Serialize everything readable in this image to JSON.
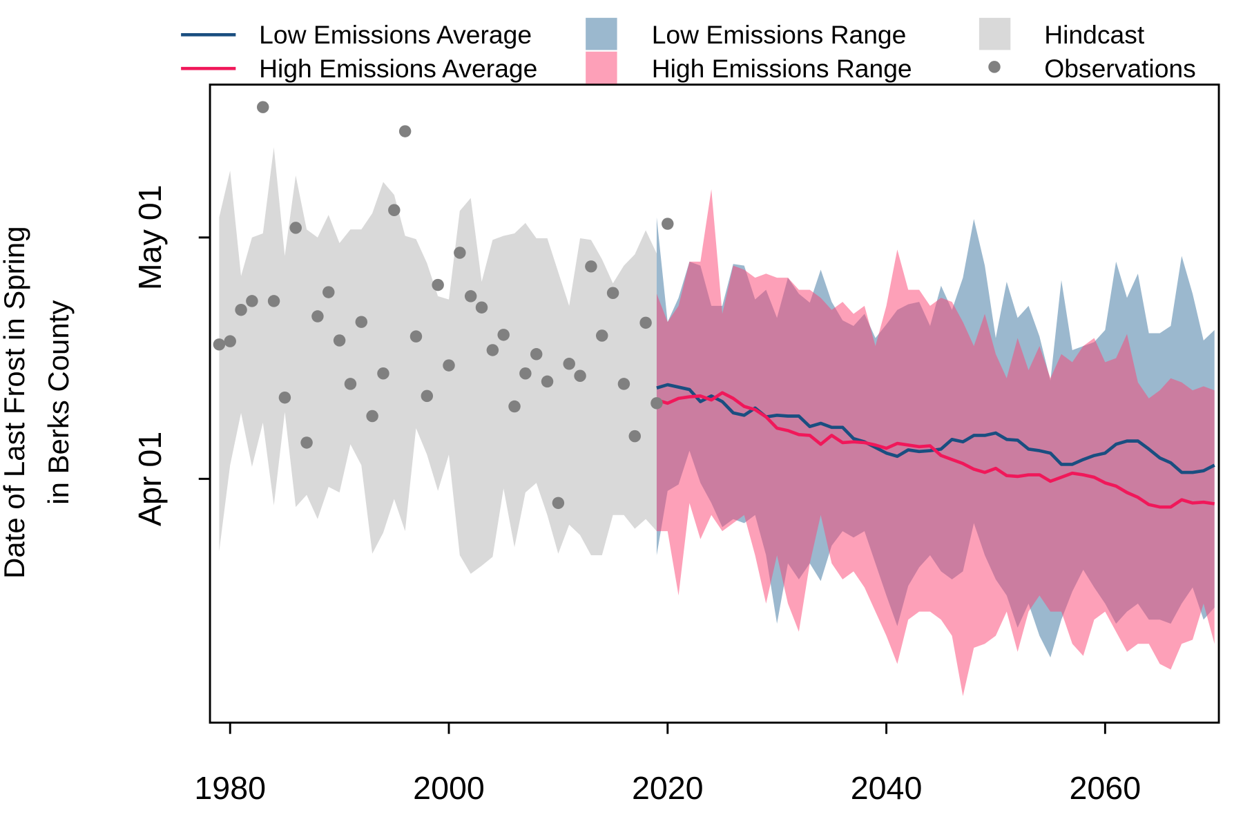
{
  "chart_data": {
    "type": "line",
    "ylabel": [
      "Date of Last Frost in Spring",
      "in Berks County"
    ],
    "xlim": [
      1978.16,
      2070.4
    ],
    "xticks": [
      1980,
      2000,
      2020,
      2040,
      2060
    ],
    "ylim": [
      60.7,
      140
    ],
    "yticks": [
      {
        "value": 91,
        "label": "Apr 01"
      },
      {
        "value": 121,
        "label": "May 01"
      }
    ],
    "legend": "top",
    "hindcast": {
      "name": "Hindcast",
      "color": "#d9d9d9",
      "x": [
        1979,
        1980,
        1981,
        1982,
        1983,
        1984,
        1985,
        1986,
        1987,
        1988,
        1989,
        1990,
        1991,
        1992,
        1993,
        1994,
        1995,
        1996,
        1997,
        1998,
        1999,
        2000,
        2001,
        2002,
        2003,
        2004,
        2005,
        2006,
        2007,
        2008,
        2009,
        2010,
        2011,
        2012,
        2013,
        2014,
        2015,
        2016,
        2017,
        2018,
        2019
      ],
      "upper": [
        123.5,
        129.3,
        116.2,
        121,
        121.5,
        132.2,
        118.7,
        128.7,
        122,
        121,
        123.8,
        120.3,
        122,
        122,
        124,
        127.9,
        126.3,
        121.2,
        120.8,
        117.8,
        113.7,
        113.3,
        124.3,
        125.9,
        115.5,
        120.7,
        121.2,
        121.5,
        122.8,
        120.9,
        120.9,
        116.7,
        112.5,
        120.9,
        120.7,
        118.3,
        115.3,
        117.5,
        118.9,
        121.9,
        119
      ],
      "lower": [
        82,
        92.7,
        99.2,
        92.5,
        98,
        87.7,
        99.3,
        87.5,
        89,
        86,
        90,
        89.3,
        95.3,
        92.7,
        81.7,
        84.3,
        88.5,
        84.5,
        97.3,
        94,
        89.5,
        94,
        81.5,
        79.2,
        80.2,
        81.3,
        89.8,
        82.5,
        89.3,
        90.5,
        86.5,
        81.7,
        85.3,
        84,
        81.5,
        81.5,
        86.5,
        86.5,
        84.8,
        86,
        84.5
      ]
    },
    "ranges": [
      {
        "name": "Low Emissions Range",
        "color": "#37719d",
        "opacity": 0.5,
        "x": [
          2019,
          2020,
          2021,
          2022,
          2023,
          2024,
          2025,
          2026,
          2027,
          2028,
          2029,
          2030,
          2031,
          2032,
          2033,
          2034,
          2035,
          2036,
          2037,
          2038,
          2039,
          2040,
          2041,
          2042,
          2043,
          2044,
          2045,
          2046,
          2047,
          2048,
          2049,
          2050,
          2051,
          2052,
          2053,
          2054,
          2055,
          2056,
          2057,
          2058,
          2059,
          2060,
          2061,
          2062,
          2063,
          2064,
          2065,
          2066,
          2067,
          2068,
          2069,
          2070
        ],
        "upper": [
          123.5,
          110.5,
          113.5,
          118,
          117.5,
          112.5,
          112.5,
          117.7,
          117.5,
          113.3,
          114.5,
          111,
          116,
          114,
          112.9,
          117,
          113,
          110.7,
          110,
          111.5,
          108.5,
          110.2,
          112,
          112.7,
          113,
          110,
          115,
          112,
          116,
          123.3,
          117.5,
          108.5,
          115.5,
          111,
          112.5,
          108.7,
          103.2,
          115.7,
          107,
          107.5,
          108,
          109.5,
          118,
          113.5,
          116.5,
          109.1,
          109.1,
          110,
          118.7,
          114,
          108.2,
          109.5
        ],
        "lower": [
          81.5,
          89.5,
          90.3,
          94.5,
          90.5,
          88,
          85,
          86,
          85.5,
          86.5,
          81.5,
          73,
          80.5,
          78.5,
          80.5,
          78.3,
          82.7,
          84.5,
          83.7,
          84.5,
          80.5,
          76.5,
          72.7,
          77.7,
          80,
          81.5,
          79.5,
          78.5,
          79.5,
          85.5,
          81.5,
          78.5,
          76.5,
          72.5,
          75.5,
          71.5,
          68.8,
          73.5,
          77,
          79.7,
          77.5,
          75.5,
          73,
          74.5,
          75.5,
          73.5,
          73.5,
          73,
          75.5,
          77.5,
          73.5,
          75
        ]
      },
      {
        "name": "High Emissions Range",
        "color": "#fb4171",
        "opacity": 0.5,
        "x": [
          2019,
          2020,
          2021,
          2022,
          2023,
          2024,
          2025,
          2026,
          2027,
          2028,
          2029,
          2030,
          2031,
          2032,
          2033,
          2034,
          2035,
          2036,
          2037,
          2038,
          2039,
          2040,
          2041,
          2042,
          2043,
          2044,
          2045,
          2046,
          2047,
          2048,
          2049,
          2050,
          2051,
          2052,
          2053,
          2054,
          2055,
          2056,
          2057,
          2058,
          2059,
          2060,
          2061,
          2062,
          2063,
          2064,
          2065,
          2066,
          2067,
          2068,
          2069,
          2070
        ],
        "upper": [
          114,
          110.5,
          112.5,
          118,
          118,
          127,
          111.5,
          117.5,
          117,
          116,
          116.5,
          116,
          116,
          114.5,
          114.5,
          113.5,
          112,
          113,
          111.5,
          112.5,
          107.5,
          112.5,
          119.5,
          114.5,
          114.5,
          112.5,
          113.5,
          113,
          110.5,
          107.5,
          111.5,
          106.5,
          103.5,
          108.5,
          104.5,
          107.5,
          103.5,
          106.5,
          105.5,
          107.5,
          108.5,
          105.5,
          106,
          109,
          103,
          101,
          102,
          103.5,
          103,
          102,
          102.5,
          102
        ],
        "lower": [
          84.5,
          84.5,
          76.5,
          88,
          83.5,
          86.5,
          84.5,
          85.5,
          86.5,
          81.5,
          75.5,
          81.5,
          75.5,
          72,
          80.5,
          86.5,
          80.5,
          78.5,
          79.5,
          77.5,
          74.5,
          71.5,
          68,
          73.5,
          74.5,
          74.5,
          73.5,
          71.5,
          64,
          70,
          70.5,
          71.5,
          74.5,
          69.5,
          74.5,
          76.5,
          74.5,
          74.5,
          70.5,
          69,
          73.5,
          74.5,
          72,
          69.5,
          70.5,
          70.5,
          68,
          67.3,
          70.5,
          71,
          75.5,
          70.5
        ]
      }
    ],
    "series": [
      {
        "name": "Low Emissions Average",
        "color": "#1a4e80",
        "x": [
          2019,
          2020,
          2021,
          2022,
          2023,
          2024,
          2025,
          2026,
          2027,
          2028,
          2029,
          2030,
          2031,
          2032,
          2033,
          2034,
          2035,
          2036,
          2037,
          2038,
          2039,
          2040,
          2041,
          2042,
          2043,
          2044,
          2045,
          2046,
          2047,
          2048,
          2049,
          2050,
          2051,
          2052,
          2053,
          2054,
          2055,
          2056,
          2057,
          2058,
          2059,
          2060,
          2061,
          2062,
          2063,
          2064,
          2065,
          2066,
          2067,
          2068,
          2069,
          2070
        ],
        "values": [
          102.3,
          102.7,
          102.4,
          102.1,
          100.6,
          101.3,
          100.6,
          99.2,
          98.9,
          99.8,
          98.7,
          98.9,
          98.8,
          98.8,
          97.5,
          97.9,
          97.4,
          97.4,
          96,
          95.6,
          94.9,
          94.2,
          93.8,
          94.6,
          94.4,
          94.5,
          94.7,
          95.9,
          95.6,
          96.4,
          96.4,
          96.7,
          95.9,
          95.8,
          94.7,
          94.5,
          94.2,
          92.8,
          92.8,
          93.4,
          93.9,
          94.2,
          95.3,
          95.7,
          95.7,
          94.7,
          93.6,
          93,
          91.8,
          91.8,
          92,
          92.7
        ]
      },
      {
        "name": "High Emissions Average",
        "color": "#f0185a",
        "x": [
          2019,
          2020,
          2021,
          2022,
          2023,
          2024,
          2025,
          2026,
          2027,
          2028,
          2029,
          2030,
          2031,
          2032,
          2033,
          2034,
          2035,
          2036,
          2037,
          2038,
          2039,
          2040,
          2041,
          2042,
          2043,
          2044,
          2045,
          2046,
          2047,
          2048,
          2049,
          2050,
          2051,
          2052,
          2053,
          2054,
          2055,
          2056,
          2057,
          2058,
          2059,
          2060,
          2061,
          2062,
          2063,
          2064,
          2065,
          2066,
          2067,
          2068,
          2069,
          2070
        ],
        "values": [
          100.8,
          100.4,
          101,
          101.2,
          101.3,
          100.8,
          101.7,
          101,
          100,
          99.6,
          98.7,
          97.3,
          97,
          96.5,
          96.4,
          95.3,
          96.4,
          95.5,
          95.6,
          95.5,
          95.2,
          94.8,
          95.4,
          95.2,
          95,
          95.1,
          93.9,
          93.4,
          92.9,
          92.2,
          91.8,
          92.3,
          91.4,
          91.3,
          91.5,
          91.5,
          90.7,
          91.2,
          91.7,
          91.5,
          91.2,
          90.5,
          90.1,
          89.3,
          88.7,
          87.8,
          87.5,
          87.5,
          88.4,
          88,
          88.1,
          87.9
        ]
      }
    ],
    "observations": {
      "name": "Observations",
      "color": "#808080",
      "x": [
        1979,
        1980,
        1981,
        1982,
        1983,
        1984,
        1985,
        1986,
        1987,
        1988,
        1989,
        1990,
        1991,
        1992,
        1993,
        1994,
        1995,
        1996,
        1997,
        1998,
        1999,
        2000,
        2001,
        2002,
        2003,
        2004,
        2005,
        2006,
        2007,
        2008,
        2009,
        2010,
        2011,
        2012,
        2013,
        2014,
        2015,
        2016,
        2017,
        2018,
        2019,
        2020
      ],
      "values": [
        107.7,
        108.1,
        112,
        113.1,
        137.2,
        113.1,
        101.1,
        122.2,
        95.5,
        111.2,
        114.2,
        108.2,
        102.8,
        110.5,
        98.8,
        104.1,
        124.4,
        134.2,
        108.7,
        101.3,
        115.1,
        105.1,
        119.1,
        113.7,
        112.3,
        107,
        108.9,
        100,
        104.1,
        106.5,
        103.1,
        88,
        105.3,
        103.8,
        117.4,
        108.8,
        114.1,
        102.8,
        96.3,
        110.4,
        100.4,
        122.7
      ]
    }
  }
}
